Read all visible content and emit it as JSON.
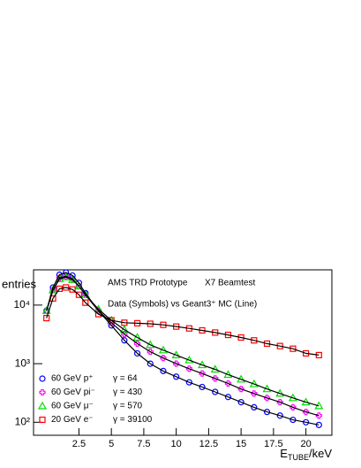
{
  "chart_data": {
    "type": "scatter",
    "annotations": [
      "AMS TRD Prototype",
      "X7 Beamtest",
      "Data (Symbols)  vs Geant3⁺ MC (Line)"
    ],
    "y_label": "entries",
    "x_label": [
      "E",
      "TUBE",
      "/keV"
    ],
    "log_y": true,
    "xlim": [
      -1,
      22
    ],
    "xticks": [
      2.5,
      5,
      7.5,
      10,
      12.5,
      15,
      17.5,
      20
    ],
    "ylim": [
      60,
      40000
    ],
    "yticks": [
      {
        "value": 100,
        "label": "10²"
      },
      {
        "value": 1000,
        "label": "10³"
      },
      {
        "value": 10000,
        "label": "10⁴"
      }
    ],
    "x": [
      0,
      0.5,
      1,
      1.5,
      2,
      2.5,
      3,
      4,
      5,
      6,
      7,
      8,
      9,
      10,
      11,
      12,
      13,
      14,
      15,
      16,
      17,
      18,
      19,
      20,
      21
    ],
    "series": [
      {
        "name": "60 GeV p⁺",
        "gamma": "γ = 64",
        "color": "#0000ff",
        "marker": "circle",
        "values": [
          8000,
          20000,
          33000,
          36000,
          32000,
          24000,
          16000,
          8000,
          4500,
          2500,
          1500,
          1000,
          750,
          600,
          480,
          400,
          330,
          270,
          220,
          180,
          150,
          130,
          110,
          100,
          90
        ]
      },
      {
        "name": "60 GeV pi⁻",
        "gamma": "γ = 430",
        "color": "#ff00ff",
        "marker": "cross",
        "values": [
          8000,
          18000,
          29000,
          31000,
          28000,
          21000,
          15000,
          8000,
          5000,
          3200,
          2200,
          1600,
          1250,
          1000,
          820,
          680,
          560,
          460,
          370,
          310,
          260,
          220,
          180,
          150,
          130
        ]
      },
      {
        "name": "60 GeV μ⁻",
        "gamma": "γ = 570",
        "color": "#00dd00",
        "marker": "triangle",
        "values": [
          8000,
          18000,
          28000,
          30000,
          27000,
          21000,
          15000,
          8500,
          5500,
          3800,
          2800,
          2100,
          1700,
          1400,
          1150,
          950,
          800,
          650,
          540,
          450,
          370,
          310,
          260,
          220,
          190
        ]
      },
      {
        "name": "20 GeV e⁻",
        "gamma": "γ = 39100",
        "color": "#ff0000",
        "marker": "square",
        "values": [
          6000,
          13000,
          19000,
          20000,
          18500,
          15000,
          11000,
          7000,
          5500,
          5000,
          4900,
          4800,
          4600,
          4300,
          4000,
          3700,
          3400,
          3100,
          2800,
          2500,
          2200,
          2000,
          1800,
          1500,
          1400
        ]
      }
    ]
  }
}
